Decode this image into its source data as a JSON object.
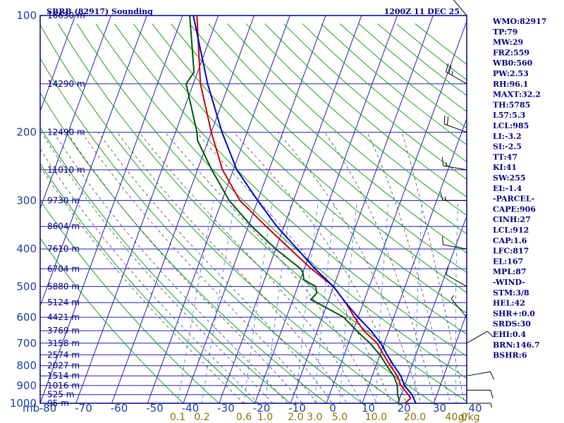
{
  "chart_data": {
    "type": "skew-t",
    "title_left": "SBRB (82917) Sounding",
    "title_right": "1200Z 11 DEC 25",
    "y_axis_unit": "mb",
    "pressure_range": [
      100,
      1000
    ],
    "temperature_range": [
      -80,
      40
    ],
    "pressure_ticks": [
      {
        "value": 100,
        "label": "100"
      },
      {
        "value": 200,
        "label": "200"
      },
      {
        "value": 300,
        "label": "300"
      },
      {
        "value": 400,
        "label": "400"
      },
      {
        "value": 500,
        "label": "500"
      },
      {
        "value": 600,
        "label": "600"
      },
      {
        "value": 700,
        "label": "700"
      },
      {
        "value": 800,
        "label": "800"
      },
      {
        "value": 900,
        "label": "900"
      },
      {
        "value": 1000,
        "label": "1000"
      }
    ],
    "height_labels": [
      {
        "p": 100,
        "label": "16630 m"
      },
      {
        "p": 150,
        "label": "14290 m"
      },
      {
        "p": 200,
        "label": "12490 m"
      },
      {
        "p": 250,
        "label": "11010 m"
      },
      {
        "p": 300,
        "label": "9730 m"
      },
      {
        "p": 350,
        "label": "8604 m"
      },
      {
        "p": 400,
        "label": "7610 m"
      },
      {
        "p": 450,
        "label": "6704 m"
      },
      {
        "p": 500,
        "label": "5880 m"
      },
      {
        "p": 550,
        "label": "5124 m"
      },
      {
        "p": 600,
        "label": "4421 m"
      },
      {
        "p": 650,
        "label": "3769 m"
      },
      {
        "p": 700,
        "label": "3158 m"
      },
      {
        "p": 750,
        "label": "2574 m"
      },
      {
        "p": 800,
        "label": "2027 m"
      },
      {
        "p": 850,
        "label": "1514 m"
      },
      {
        "p": 900,
        "label": "1016 m"
      },
      {
        "p": 950,
        "label": "525 m"
      },
      {
        "p": 1000,
        "label": "95 m"
      }
    ],
    "temperature_ticks": [
      "-80",
      "-70",
      "-60",
      "-50",
      "-40",
      "-30",
      "-20",
      "-10",
      "0",
      "10",
      "20",
      "30",
      "40"
    ],
    "mixing_ratio_labels": [
      {
        "w": 0.1,
        "label": "0.1"
      },
      {
        "w": 0.2,
        "label": "0.2"
      },
      {
        "w": 0.6,
        "label": "0.6"
      },
      {
        "w": 1.0,
        "label": "1.0"
      },
      {
        "w": 2.0,
        "label": "2.0"
      },
      {
        "w": 3.0,
        "label": "3.0"
      },
      {
        "w": 5.0,
        "label": "5.0"
      },
      {
        "w": 10.0,
        "label": "10.0"
      },
      {
        "w": 20.0,
        "label": "20.0"
      },
      {
        "w": 40.0,
        "label": "40.0"
      }
    ],
    "mixing_ratio_unit": "g/kg",
    "series": [
      {
        "name": "temperature",
        "color": "#cc0000",
        "points": [
          [
            100,
            -76
          ],
          [
            150,
            -68
          ],
          [
            200,
            -60
          ],
          [
            250,
            -53
          ],
          [
            300,
            -45
          ],
          [
            350,
            -35
          ],
          [
            400,
            -26
          ],
          [
            450,
            -18
          ],
          [
            500,
            -10
          ],
          [
            550,
            -5
          ],
          [
            600,
            -1
          ],
          [
            650,
            3
          ],
          [
            700,
            8
          ],
          [
            750,
            11
          ],
          [
            800,
            14
          ],
          [
            850,
            17
          ],
          [
            900,
            19
          ],
          [
            950,
            22
          ],
          [
            970,
            23
          ],
          [
            1000,
            22
          ]
        ]
      },
      {
        "name": "dewpoint",
        "color": "#005500",
        "points": [
          [
            100,
            -78
          ],
          [
            140,
            -71
          ],
          [
            150,
            -72
          ],
          [
            200,
            -64
          ],
          [
            210,
            -63
          ],
          [
            250,
            -56
          ],
          [
            300,
            -48
          ],
          [
            350,
            -39
          ],
          [
            400,
            -30
          ],
          [
            450,
            -21
          ],
          [
            460,
            -20
          ],
          [
            480,
            -19
          ],
          [
            500,
            -15
          ],
          [
            520,
            -14
          ],
          [
            540,
            -15
          ],
          [
            550,
            -13
          ],
          [
            600,
            -4
          ],
          [
            650,
            1
          ],
          [
            700,
            6
          ],
          [
            750,
            10
          ],
          [
            800,
            13
          ],
          [
            850,
            16
          ],
          [
            900,
            18
          ],
          [
            950,
            19
          ],
          [
            980,
            20
          ],
          [
            1000,
            20
          ]
        ]
      },
      {
        "name": "parcel",
        "color": "#0000cc",
        "points": [
          [
            100,
            -77
          ],
          [
            150,
            -66
          ],
          [
            200,
            -57
          ],
          [
            250,
            -49
          ],
          [
            300,
            -40
          ],
          [
            350,
            -32
          ],
          [
            400,
            -24
          ],
          [
            450,
            -17
          ],
          [
            500,
            -10
          ],
          [
            550,
            -5
          ],
          [
            600,
            0
          ],
          [
            650,
            5
          ],
          [
            700,
            9
          ],
          [
            750,
            12
          ],
          [
            800,
            15
          ],
          [
            850,
            18
          ],
          [
            900,
            20
          ],
          [
            950,
            23
          ],
          [
            1000,
            25
          ]
        ]
      }
    ],
    "winds": [
      {
        "p": 100,
        "dir": 320,
        "spd": 15
      },
      {
        "p": 150,
        "dir": 300,
        "spd": 25
      },
      {
        "p": 200,
        "dir": 290,
        "spd": 20
      },
      {
        "p": 250,
        "dir": 280,
        "spd": 15
      },
      {
        "p": 300,
        "dir": 270,
        "spd": 15
      },
      {
        "p": 400,
        "dir": 280,
        "spd": 10
      },
      {
        "p": 500,
        "dir": 300,
        "spd": 10
      },
      {
        "p": 600,
        "dir": 320,
        "spd": 5
      },
      {
        "p": 700,
        "dir": 60,
        "spd": 10
      },
      {
        "p": 850,
        "dir": 80,
        "spd": 10
      },
      {
        "p": 925,
        "dir": 90,
        "spd": 10
      },
      {
        "p": 1000,
        "dir": 90,
        "spd": 5
      }
    ]
  },
  "indices": [
    "WMO:82917",
    "TP:79",
    "MW:29",
    "FRZ:559",
    "WB0:560",
    "PW:2.53",
    "RH:96.1",
    "MAXT:32.2",
    "TH:5785",
    "L57:5.3",
    "LCL:985",
    "LI:-3.2",
    "SI:-2.5",
    "TT:47",
    "KI:41",
    "SW:255",
    "EI:-1.4",
    "-PARCEL-",
    "CAPE:906",
    "CINH:27",
    "LCL:912",
    "CAP:1.6",
    "LFC:817",
    "EL:167",
    "MPL:87",
    "-WIND-",
    "STM:3/8",
    "HEL:42",
    "SHR+:0.0",
    "SRDS:30",
    "EHI:0.4",
    "BRN:146.7",
    "BSHR:6"
  ],
  "colors": {
    "frame": "#00008b",
    "grid": "#1c1cb4",
    "dry_adiabat": "#18a018",
    "moist_adiabat": "#444444",
    "mixing_ratio": "#3d88dd",
    "text": "#000080",
    "axis_text": "#1a3fa0",
    "mixing_text": "#8a7000"
  }
}
